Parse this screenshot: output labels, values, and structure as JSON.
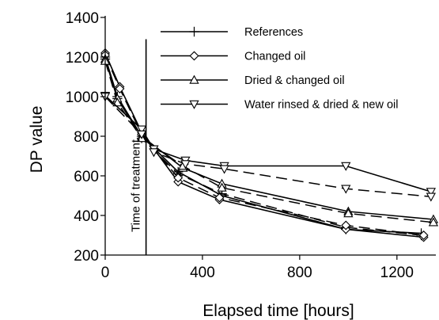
{
  "chart_data": {
    "type": "line",
    "xlabel": "Elapsed time [hours]",
    "ylabel": "DP value",
    "xlim": [
      0,
      1360
    ],
    "ylim": [
      200,
      1400
    ],
    "xticks": [
      0,
      400,
      800,
      1200
    ],
    "yticks": [
      200,
      400,
      600,
      800,
      1000,
      1200,
      1400
    ],
    "grid": false,
    "legend_position": "top-right",
    "annotations": [
      {
        "text": "Time of treatment",
        "x": 168
      }
    ],
    "series": [
      {
        "name": "References",
        "marker": "plus",
        "groups": [
          {
            "style": "solid",
            "x": [
              0,
              50,
              150,
              300,
              480,
              990,
              1300
            ],
            "y": [
              1200,
              1000,
              800,
              620,
              500,
              330,
              310
            ]
          },
          {
            "style": "dashed",
            "x": [
              0,
              50,
              150,
              300,
              480,
              990,
              1300
            ],
            "y": [
              1190,
              990,
              790,
              610,
              510,
              340,
              300
            ]
          }
        ]
      },
      {
        "name": "Changed oil",
        "marker": "diamond",
        "groups": [
          {
            "style": "solid",
            "x": [
              0,
              60,
              150,
              300,
              470,
              990,
              1310
            ],
            "y": [
              1220,
              1050,
              820,
              570,
              480,
              330,
              290
            ]
          },
          {
            "style": "dashed",
            "x": [
              0,
              60,
              150,
              300,
              470,
              990,
              1310
            ],
            "y": [
              1210,
              1040,
              810,
              590,
              490,
              350,
              300
            ]
          }
        ]
      },
      {
        "name": "Dried & changed oil",
        "marker": "triangle-up",
        "groups": [
          {
            "style": "solid",
            "x": [
              0,
              50,
              150,
              320,
              480,
              1000,
              1350
            ],
            "y": [
              1190,
              990,
              800,
              640,
              560,
              420,
              380
            ]
          },
          {
            "style": "dashed",
            "x": [
              0,
              50,
              150,
              320,
              480,
              1000,
              1350
            ],
            "y": [
              1180,
              970,
              790,
              650,
              540,
              410,
              365
            ]
          }
        ]
      },
      {
        "name": "Water rinsed & dried & new oil",
        "marker": "triangle-down",
        "groups": [
          {
            "style": "solid",
            "x": [
              0,
              150,
              200,
              330,
              490,
              990,
              1340
            ],
            "y": [
              1005,
              835,
              735,
              678,
              650,
              650,
              520
            ]
          },
          {
            "style": "dashed",
            "x": [
              0,
              150,
              200,
              330,
              490,
              990,
              1340
            ],
            "y": [
              1000,
              810,
              720,
              660,
              635,
              535,
              495
            ]
          }
        ]
      }
    ]
  }
}
